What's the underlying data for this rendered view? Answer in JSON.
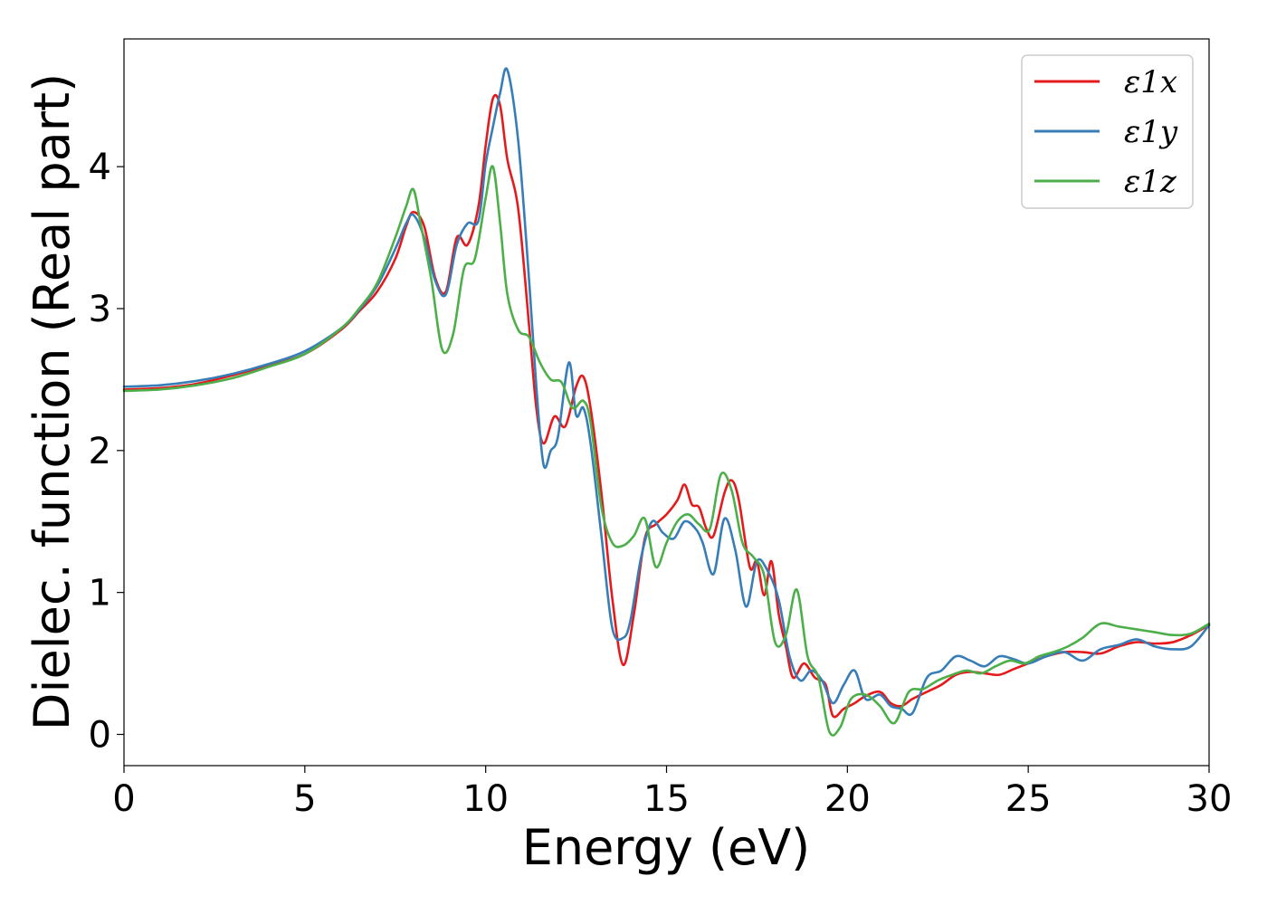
{
  "chart_data": {
    "type": "line",
    "xlabel": "Energy (eV)",
    "ylabel": "Dielec. function (Real part)",
    "xlim": [
      0,
      30
    ],
    "ylim": [
      -0.22,
      4.9
    ],
    "xticks": [
      0,
      5,
      10,
      15,
      20,
      25,
      30
    ],
    "yticks": [
      0,
      1,
      2,
      3,
      4
    ],
    "xtick_labels": [
      "0",
      "5",
      "10",
      "15",
      "20",
      "25",
      "30"
    ],
    "ytick_labels": [
      "0",
      "1",
      "2",
      "3",
      "4"
    ],
    "grid": false,
    "legend_position": "top-right",
    "series": [
      {
        "name": "ε1x",
        "color": "#e41a1c",
        "x": [
          0,
          1,
          2,
          3,
          4,
          5,
          6,
          6.5,
          7,
          7.5,
          7.8,
          8.0,
          8.3,
          8.6,
          8.9,
          9.2,
          9.5,
          9.8,
          10.0,
          10.2,
          10.4,
          10.6,
          10.9,
          11.2,
          11.4,
          11.6,
          11.9,
          12.2,
          12.5,
          12.7,
          12.9,
          13.2,
          13.5,
          13.8,
          14.1,
          14.4,
          14.7,
          15.0,
          15.3,
          15.5,
          15.7,
          15.9,
          16.1,
          16.3,
          16.6,
          16.8,
          17.0,
          17.3,
          17.5,
          17.7,
          17.9,
          18.1,
          18.3,
          18.5,
          18.8,
          19.1,
          19.4,
          19.6,
          19.9,
          20.2,
          20.5,
          20.9,
          21.2,
          21.5,
          21.8,
          22.2,
          22.6,
          23.0,
          23.4,
          23.8,
          24.2,
          24.6,
          25.0,
          25.5,
          26.0,
          26.5,
          27.0,
          27.5,
          28.0,
          28.5,
          29.0,
          29.5,
          30.0
        ],
        "y": [
          2.43,
          2.44,
          2.47,
          2.53,
          2.6,
          2.68,
          2.85,
          2.98,
          3.12,
          3.35,
          3.58,
          3.68,
          3.58,
          3.22,
          3.12,
          3.5,
          3.45,
          3.72,
          4.15,
          4.48,
          4.43,
          4.05,
          3.7,
          2.88,
          2.3,
          2.05,
          2.24,
          2.17,
          2.45,
          2.52,
          2.3,
          1.7,
          0.96,
          0.49,
          0.85,
          1.38,
          1.48,
          1.55,
          1.65,
          1.76,
          1.62,
          1.6,
          1.45,
          1.4,
          1.7,
          1.79,
          1.65,
          1.18,
          1.22,
          0.98,
          1.22,
          0.85,
          0.62,
          0.4,
          0.5,
          0.4,
          0.35,
          0.13,
          0.18,
          0.22,
          0.27,
          0.3,
          0.22,
          0.2,
          0.25,
          0.3,
          0.35,
          0.42,
          0.44,
          0.43,
          0.42,
          0.46,
          0.5,
          0.55,
          0.58,
          0.58,
          0.57,
          0.62,
          0.65,
          0.64,
          0.65,
          0.7,
          0.77
        ]
      },
      {
        "name": "ε1y",
        "color": "#377eb8",
        "x": [
          0,
          1,
          2,
          3,
          4,
          5,
          6,
          6.5,
          7,
          7.5,
          7.8,
          8.0,
          8.3,
          8.6,
          8.9,
          9.2,
          9.5,
          9.8,
          10.0,
          10.2,
          10.4,
          10.6,
          10.9,
          11.2,
          11.4,
          11.6,
          11.8,
          12.0,
          12.3,
          12.5,
          12.7,
          12.9,
          13.2,
          13.5,
          13.8,
          14.0,
          14.3,
          14.6,
          14.9,
          15.2,
          15.5,
          15.8,
          16.0,
          16.3,
          16.6,
          16.9,
          17.2,
          17.5,
          17.8,
          18.1,
          18.4,
          18.7,
          19.0,
          19.3,
          19.6,
          19.9,
          20.2,
          20.5,
          20.9,
          21.2,
          21.5,
          21.8,
          22.2,
          22.6,
          23.0,
          23.4,
          23.8,
          24.2,
          24.6,
          25.0,
          25.5,
          26.0,
          26.5,
          27.0,
          27.5,
          28.0,
          28.5,
          29.0,
          29.5,
          30.0
        ],
        "y": [
          2.45,
          2.46,
          2.49,
          2.54,
          2.61,
          2.7,
          2.86,
          2.99,
          3.16,
          3.42,
          3.6,
          3.66,
          3.5,
          3.2,
          3.1,
          3.45,
          3.6,
          3.62,
          4.02,
          4.28,
          4.52,
          4.68,
          4.18,
          3.2,
          2.45,
          1.9,
          2.0,
          2.1,
          2.62,
          2.25,
          2.3,
          2.05,
          1.4,
          0.75,
          0.68,
          0.8,
          1.25,
          1.5,
          1.42,
          1.38,
          1.5,
          1.45,
          1.35,
          1.13,
          1.52,
          1.3,
          0.9,
          1.22,
          1.15,
          0.95,
          0.55,
          0.38,
          0.45,
          0.38,
          0.22,
          0.35,
          0.45,
          0.25,
          0.28,
          0.2,
          0.18,
          0.15,
          0.4,
          0.45,
          0.55,
          0.52,
          0.48,
          0.55,
          0.53,
          0.5,
          0.55,
          0.58,
          0.52,
          0.6,
          0.63,
          0.67,
          0.62,
          0.6,
          0.62,
          0.77
        ]
      },
      {
        "name": "ε1z",
        "color": "#4daf4a",
        "x": [
          0,
          1,
          2,
          3,
          4,
          5,
          6,
          6.5,
          7,
          7.5,
          7.8,
          8.0,
          8.2,
          8.5,
          8.8,
          9.1,
          9.4,
          9.7,
          10.0,
          10.2,
          10.4,
          10.6,
          10.9,
          11.2,
          11.5,
          11.8,
          12.1,
          12.4,
          12.7,
          12.9,
          13.2,
          13.5,
          13.8,
          14.1,
          14.4,
          14.7,
          15.0,
          15.3,
          15.6,
          15.9,
          16.2,
          16.5,
          16.8,
          17.1,
          17.4,
          17.7,
          18.0,
          18.3,
          18.6,
          18.9,
          19.2,
          19.5,
          19.8,
          20.1,
          20.5,
          20.9,
          21.3,
          21.7,
          22.1,
          22.5,
          22.9,
          23.3,
          23.7,
          24.1,
          24.5,
          24.9,
          25.3,
          25.7,
          26.1,
          26.5,
          27.0,
          27.5,
          28.0,
          28.5,
          29.0,
          29.5,
          30.0
        ],
        "y": [
          2.42,
          2.43,
          2.46,
          2.51,
          2.59,
          2.68,
          2.86,
          3.0,
          3.18,
          3.5,
          3.72,
          3.84,
          3.6,
          3.2,
          2.71,
          2.82,
          3.28,
          3.35,
          3.78,
          4.0,
          3.6,
          3.1,
          2.85,
          2.8,
          2.62,
          2.5,
          2.48,
          2.3,
          2.35,
          2.2,
          1.6,
          1.35,
          1.33,
          1.4,
          1.52,
          1.18,
          1.35,
          1.5,
          1.55,
          1.48,
          1.45,
          1.83,
          1.72,
          1.35,
          1.25,
          1.12,
          0.65,
          0.7,
          1.02,
          0.55,
          0.4,
          0.02,
          0.05,
          0.25,
          0.28,
          0.2,
          0.08,
          0.3,
          0.32,
          0.38,
          0.42,
          0.45,
          0.43,
          0.48,
          0.52,
          0.5,
          0.55,
          0.58,
          0.62,
          0.68,
          0.78,
          0.76,
          0.74,
          0.72,
          0.7,
          0.71,
          0.78
        ]
      }
    ]
  }
}
